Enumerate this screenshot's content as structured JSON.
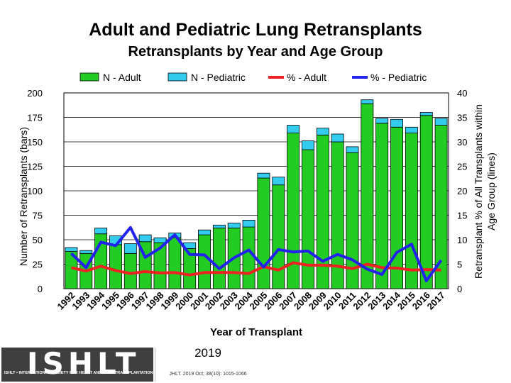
{
  "slide": {
    "title": "Adult and Pediatric Lung Retransplants",
    "subtitle": "Retransplants by Year and Age Group"
  },
  "colors": {
    "adult_bar": "#22cc22",
    "pediatric_bar": "#33ccee",
    "adult_line": "#ee2222",
    "pediatric_line": "#2222ee",
    "logo_bg": "#3f3f3f"
  },
  "chart_data": {
    "type": "bar",
    "stacked": true,
    "xlabel": "Year of Transplant",
    "ylabel": "Number of Retransplants (bars)",
    "y2label_line1": "Retransplant % of All Transplants within",
    "y2label_line2": "Age Group (lines)",
    "ylim": [
      0,
      200
    ],
    "yticks": [
      0,
      25,
      50,
      75,
      100,
      125,
      150,
      175,
      200
    ],
    "y2lim": [
      0,
      40
    ],
    "y2ticks": [
      0,
      5,
      10,
      15,
      20,
      25,
      30,
      35,
      40
    ],
    "categories": [
      "1992",
      "1993",
      "1994",
      "1995",
      "1996",
      "1997",
      "1998",
      "1999",
      "2000",
      "2001",
      "2002",
      "2003",
      "2004",
      "2005",
      "2006",
      "2007",
      "2008",
      "2009",
      "2010",
      "2011",
      "2012",
      "2013",
      "2014",
      "2015",
      "2016",
      "2017"
    ],
    "legend": [
      "N - Adult",
      "N - Pediatric",
      "% - Adult",
      "% - Pediatric"
    ],
    "series": [
      {
        "name": "N - Adult",
        "kind": "bar",
        "axis": "left",
        "values": [
          38,
          36,
          56,
          45,
          36,
          48,
          47,
          52,
          41,
          55,
          62,
          62,
          63,
          113,
          106,
          159,
          142,
          157,
          150,
          139,
          189,
          169,
          165,
          159,
          177,
          167
        ]
      },
      {
        "name": "N - Pediatric",
        "kind": "bar",
        "axis": "left",
        "values": [
          4,
          3,
          6,
          9,
          10,
          7,
          5,
          5,
          6,
          5,
          3,
          5,
          7,
          5,
          8,
          8,
          9,
          7,
          8,
          6,
          4,
          5,
          8,
          6,
          3,
          7
        ]
      },
      {
        "name": "% - Adult",
        "kind": "line",
        "axis": "right",
        "values": [
          4.3,
          3.6,
          4.6,
          3.7,
          3.1,
          3.5,
          3.2,
          3.3,
          2.8,
          3.3,
          3.3,
          3.3,
          3.1,
          4.5,
          3.8,
          5.3,
          4.8,
          4.8,
          4.6,
          4.1,
          5.0,
          4.3,
          4.2,
          3.8,
          3.9,
          3.8
        ]
      },
      {
        "name": "% - Pediatric",
        "kind": "line",
        "axis": "right",
        "values": [
          7.2,
          4.3,
          9.5,
          8.8,
          12.5,
          6.4,
          8.3,
          11.0,
          7.0,
          6.9,
          4.1,
          6.3,
          7.9,
          4.4,
          8.0,
          7.5,
          7.7,
          5.6,
          7.0,
          5.9,
          4.0,
          2.9,
          7.4,
          9.1,
          1.6,
          5.8
        ]
      }
    ]
  },
  "footer": {
    "logo_text": "ISHLT",
    "logo_subtitle": "ISHLT • INTERNATIONAL SOCIETY FOR HEART AND LUNG TRANSPLANTATION",
    "year": "2019",
    "citation": "JHLT. 2019 Oct; 38(10): 1015-1066"
  }
}
